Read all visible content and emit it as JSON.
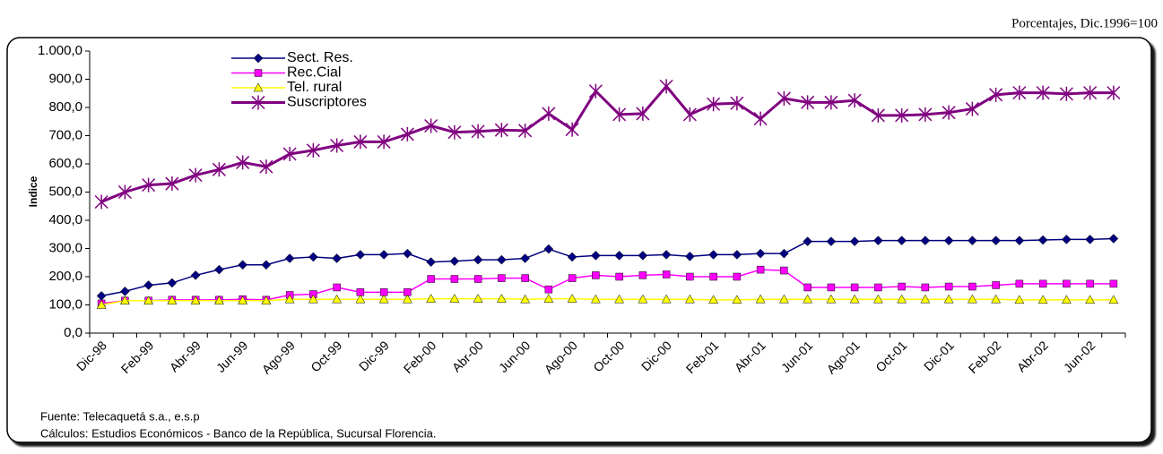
{
  "chart_data": {
    "type": "line",
    "note": "Porcentajes, Dic.1996=100",
    "ylabel": "Indice",
    "footnotes": [
      "Fuente: Telecaquetá s.a., e.s.p",
      "Cálculos:  Estudios Económicos - Banco de la República, Sucursal Florencia."
    ],
    "categories": [
      "Dic-98",
      null,
      "Feb-99",
      null,
      "Abr-99",
      null,
      "Jun-99",
      null,
      "Ago-99",
      null,
      "Oct-99",
      null,
      "Dic-99",
      null,
      "Feb-00",
      null,
      "Abr-00",
      null,
      "Jun-00",
      null,
      "Ago-00",
      null,
      "Oct-00",
      null,
      "Dic-00",
      null,
      "Feb-01",
      null,
      "Abr-01",
      null,
      "Jun-01",
      null,
      "Ago-01",
      null,
      "Oct-01",
      null,
      "Dic-01",
      null,
      "Feb-02",
      null,
      "Abr-02",
      null,
      "Jun-02",
      null
    ],
    "series": [
      {
        "name": "Sect. Res.",
        "color": "#000080",
        "marker": "diamond",
        "values": [
          132,
          148,
          170,
          178,
          205,
          225,
          242,
          242,
          265,
          270,
          265,
          278,
          278,
          282,
          252,
          255,
          260,
          260,
          265,
          298,
          270,
          275,
          275,
          275,
          278,
          272,
          278,
          278,
          282,
          282,
          325,
          325,
          325,
          328,
          328,
          328,
          328,
          328,
          328,
          328,
          330,
          332,
          332,
          335
        ]
      },
      {
        "name": "Rec.Cial",
        "color": "#ff00ff",
        "marker": "square",
        "values": [
          105,
          115,
          115,
          118,
          118,
          118,
          120,
          118,
          135,
          138,
          162,
          145,
          145,
          145,
          192,
          192,
          192,
          195,
          195,
          155,
          195,
          205,
          200,
          205,
          208,
          200,
          200,
          200,
          225,
          222,
          162,
          162,
          162,
          162,
          165,
          162,
          165,
          165,
          170,
          175,
          175,
          175,
          175,
          175
        ]
      },
      {
        "name": "Tel. rural",
        "color": "#ffff00",
        "marker": "triangle",
        "values": [
          100,
          115,
          115,
          115,
          115,
          115,
          115,
          115,
          120,
          120,
          120,
          120,
          120,
          120,
          122,
          122,
          122,
          122,
          120,
          122,
          122,
          120,
          120,
          120,
          120,
          120,
          118,
          118,
          120,
          120,
          120,
          120,
          120,
          120,
          120,
          120,
          120,
          120,
          120,
          118,
          118,
          118,
          118,
          118
        ]
      },
      {
        "name": "Suscriptores",
        "color": "#800080",
        "marker": "star",
        "values": [
          465,
          500,
          525,
          530,
          560,
          580,
          605,
          590,
          635,
          648,
          665,
          678,
          678,
          705,
          735,
          712,
          715,
          720,
          718,
          778,
          722,
          858,
          775,
          778,
          875,
          775,
          812,
          815,
          760,
          832,
          818,
          818,
          825,
          772,
          772,
          775,
          782,
          795,
          845,
          852,
          852,
          848,
          852,
          852
        ]
      }
    ],
    "ylim": [
      0,
      1000
    ],
    "yticks": [
      {
        "value": 0,
        "label": "0,0"
      },
      {
        "value": 100,
        "label": "100,0"
      },
      {
        "value": 200,
        "label": "200,0"
      },
      {
        "value": 300,
        "label": "300,0"
      },
      {
        "value": 400,
        "label": "400,0"
      },
      {
        "value": 500,
        "label": "500,0"
      },
      {
        "value": 600,
        "label": "600,0"
      },
      {
        "value": 700,
        "label": "700,0"
      },
      {
        "value": 800,
        "label": "800,0"
      },
      {
        "value": 900,
        "label": "900,0"
      },
      {
        "value": 1000,
        "label": "1.000,0"
      }
    ],
    "grid": false,
    "legend": "upper left"
  }
}
